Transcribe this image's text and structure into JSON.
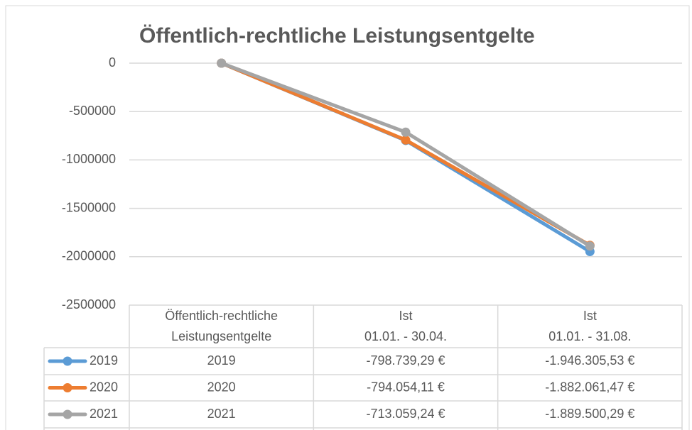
{
  "chart_data": {
    "type": "line",
    "title": "Öffentlich-rechtliche Leistungsentgelte",
    "categories": [
      [
        "Öffentlich-rechtliche",
        "Leistungsentgelte"
      ],
      [
        "Ist",
        "01.01. - 30.04."
      ],
      [
        "Ist",
        "01.01. - 31.08."
      ]
    ],
    "series": [
      {
        "name": "2019",
        "color": "#5b9bd5",
        "values": [
          0,
          -798739.29,
          -1946305.53
        ],
        "value_labels": [
          null,
          "-798.739,29 €",
          "-1.946.305,53 €"
        ]
      },
      {
        "name": "2020",
        "color": "#ed7d31",
        "values": [
          0,
          -794054.11,
          -1882061.47
        ],
        "value_labels": [
          null,
          "-794.054,11 €",
          "-1.882.061,47 €"
        ]
      },
      {
        "name": "2021",
        "color": "#a5a5a5",
        "values": [
          0,
          -713059.24,
          -1889500.29
        ],
        "value_labels": [
          null,
          "-713.059,24 €",
          "-1.889.500,29 €"
        ]
      }
    ],
    "ylim": [
      -2500000,
      0
    ],
    "yticks": [
      0,
      -500000,
      -1000000,
      -1500000,
      -2000000,
      -2500000
    ],
    "grid": true
  }
}
